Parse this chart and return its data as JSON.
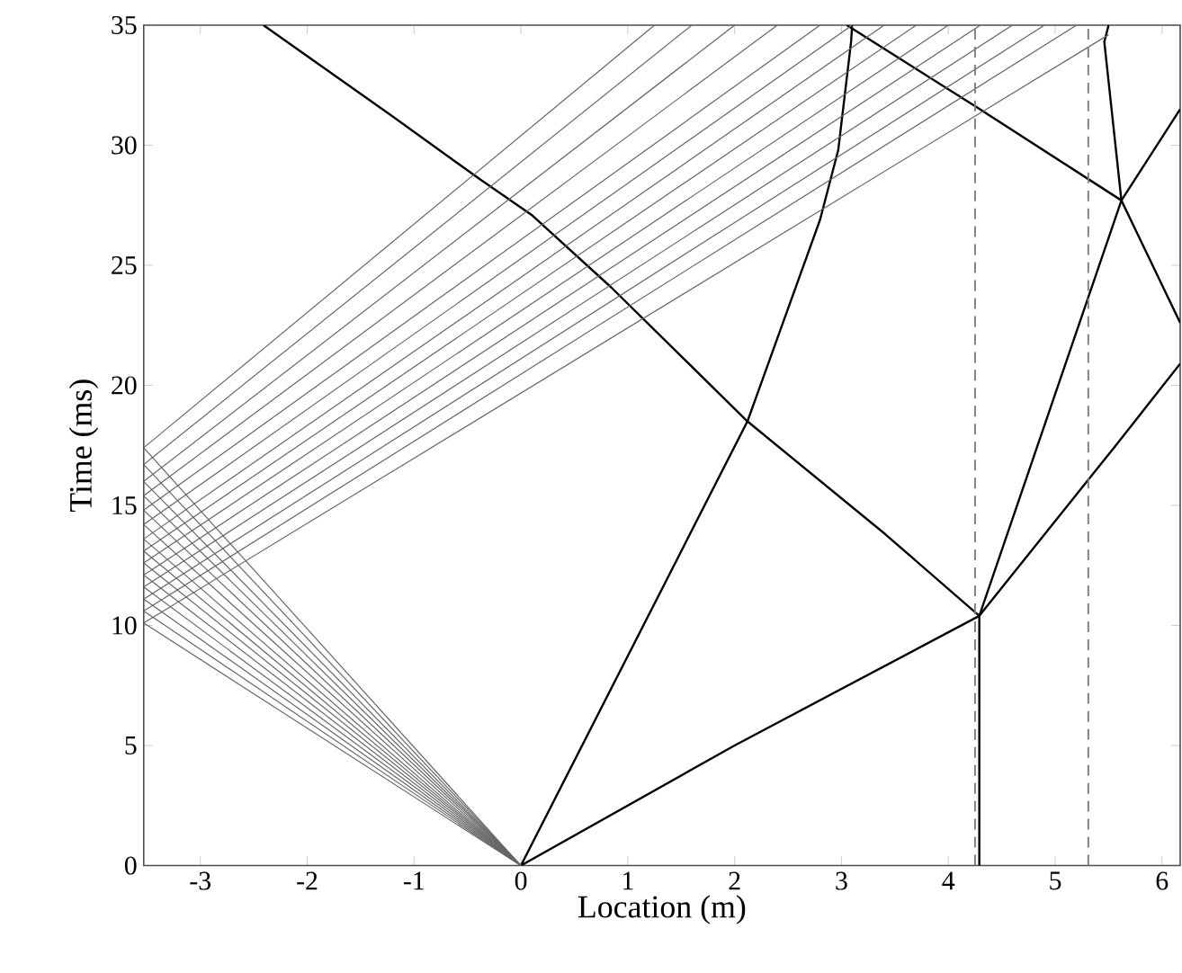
{
  "chart_data": {
    "type": "line",
    "xlabel": "Location (m)",
    "ylabel": "Time (ms)",
    "xlim": [
      -3.53,
      6.17
    ],
    "ylim": [
      0,
      35
    ],
    "xticks": [
      -3,
      -2,
      -1,
      0,
      1,
      2,
      3,
      4,
      5,
      6
    ],
    "yticks": [
      0,
      5,
      10,
      15,
      20,
      25,
      30,
      35
    ],
    "marker": "none",
    "grid": false,
    "ref_lines": [
      {
        "axis": "x",
        "value": 4.25,
        "color": "#808080",
        "line_style": "dashed"
      },
      {
        "axis": "x",
        "value": 5.31,
        "color": "#808080",
        "line_style": "dashed"
      }
    ],
    "series": [
      {
        "color": "#000000",
        "x": [
          0,
          2,
          4.29,
          5.55,
          6.17
        ],
        "values": [
          0,
          5,
          10.4,
          17.4,
          20.9
        ]
      },
      {
        "color": "#000000",
        "x": [
          0,
          2.12,
          2.8,
          2.97,
          3.09,
          3.1
        ],
        "values": [
          0,
          18.5,
          26.9,
          29.8,
          34.3,
          35
        ]
      },
      {
        "color": "#000000",
        "x": [
          -2.41,
          -1.2,
          -0.39,
          0.1,
          0.84,
          2.12,
          3.41,
          4.29
        ],
        "values": [
          35,
          31.2,
          28.6,
          27.1,
          24.1,
          18.5,
          13.8,
          10.4
        ]
      },
      {
        "color": "#000000",
        "x": [
          4.29,
          4.29,
          5.62,
          5.46,
          5.5
        ],
        "values": [
          0,
          10.4,
          27.7,
          34.3,
          35
        ]
      },
      {
        "color": "#000000",
        "x": [
          3.05,
          4.26,
          5.62,
          6.17
        ],
        "values": [
          35,
          31.6,
          27.7,
          22.6
        ]
      },
      {
        "color": "#000000",
        "x": [
          5.62,
          6.17
        ],
        "values": [
          27.7,
          31.5
        ]
      },
      {
        "color": "#666666",
        "x": [
          0,
          -3.53,
          5.5
        ],
        "values": [
          0,
          10.1,
          34.6
        ]
      },
      {
        "color": "#666666",
        "x": [
          0,
          -3.53,
          5.2
        ],
        "values": [
          0,
          10.6,
          35
        ]
      },
      {
        "color": "#666666",
        "x": [
          0,
          -3.53,
          4.9
        ],
        "values": [
          0,
          11.1,
          35
        ]
      },
      {
        "color": "#666666",
        "x": [
          0,
          -3.53,
          4.6
        ],
        "values": [
          0,
          11.6,
          35
        ]
      },
      {
        "color": "#666666",
        "x": [
          0,
          -3.53,
          4.3
        ],
        "values": [
          0,
          12.1,
          35
        ]
      },
      {
        "color": "#666666",
        "x": [
          0,
          -3.53,
          4.0
        ],
        "values": [
          0,
          12.6,
          35
        ]
      },
      {
        "color": "#666666",
        "x": [
          0,
          -3.53,
          3.7
        ],
        "values": [
          0,
          13.1,
          35
        ]
      },
      {
        "color": "#666666",
        "x": [
          0,
          -3.53,
          3.4
        ],
        "values": [
          0,
          13.6,
          35
        ]
      },
      {
        "color": "#666666",
        "x": [
          0,
          -3.53,
          3.1
        ],
        "values": [
          0,
          14.2,
          35
        ]
      },
      {
        "color": "#666666",
        "x": [
          0,
          -3.53,
          2.8
        ],
        "values": [
          0,
          14.8,
          35
        ]
      },
      {
        "color": "#666666",
        "x": [
          0,
          -3.53,
          2.4
        ],
        "values": [
          0,
          15.4,
          35
        ]
      },
      {
        "color": "#666666",
        "x": [
          0,
          -3.53,
          2.0
        ],
        "values": [
          0,
          16.0,
          35
        ]
      },
      {
        "color": "#666666",
        "x": [
          0,
          -3.53,
          1.6
        ],
        "values": [
          0,
          16.7,
          35
        ]
      },
      {
        "color": "#666666",
        "x": [
          0,
          -3.53,
          1.25
        ],
        "values": [
          0,
          17.4,
          35
        ]
      }
    ]
  }
}
